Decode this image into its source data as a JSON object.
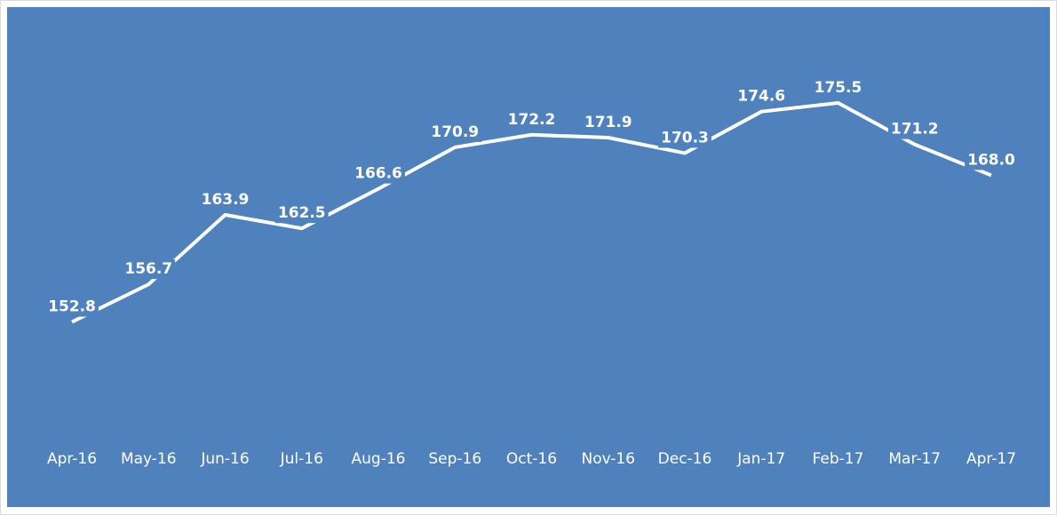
{
  "chart_data": {
    "type": "line",
    "categories": [
      "Apr-16",
      "May-16",
      "Jun-16",
      "Jul-16",
      "Aug-16",
      "Sep-16",
      "Oct-16",
      "Nov-16",
      "Dec-16",
      "Jan-17",
      "Feb-17",
      "Mar-17",
      "Apr-17"
    ],
    "values": [
      152.8,
      156.7,
      163.9,
      162.5,
      166.6,
      170.9,
      172.2,
      171.9,
      170.3,
      174.6,
      175.5,
      171.2,
      168.0
    ],
    "value_labels": [
      "152.8",
      "156.7",
      "163.9",
      "162.5",
      "166.6",
      "170.9",
      "172.2",
      "171.9",
      "170.3",
      "174.6",
      "175.5",
      "171.2",
      "168.0"
    ],
    "color": "#ffffff",
    "background": "#4f81bd",
    "ylim": [
      142,
      180
    ]
  }
}
